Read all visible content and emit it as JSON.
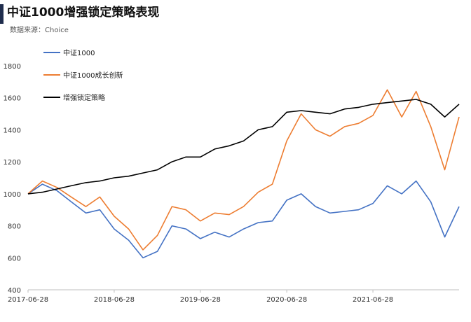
{
  "header": {
    "title": "中证1000增强锁定策略表现",
    "source": "数据来源：Choice"
  },
  "chart_data": {
    "type": "line",
    "title": "中证1000增强锁定策略表现",
    "xlabel": "",
    "ylabel": "",
    "ylim": [
      400,
      1800
    ],
    "yticks": [
      400,
      600,
      800,
      1000,
      1200,
      1400,
      1600,
      1800
    ],
    "xticks": [
      "2017-06-28",
      "2018-06-28",
      "2019-06-28",
      "2020-06-28",
      "2021-06-28"
    ],
    "grid": false,
    "legend_position": "top-left",
    "x": [
      "2017-06-28",
      "2017-08-28",
      "2017-10-28",
      "2017-12-28",
      "2018-02-28",
      "2018-04-28",
      "2018-06-28",
      "2018-08-28",
      "2018-10-28",
      "2018-12-28",
      "2019-02-28",
      "2019-04-28",
      "2019-06-28",
      "2019-08-28",
      "2019-10-28",
      "2019-12-28",
      "2020-02-28",
      "2020-04-28",
      "2020-06-28",
      "2020-08-28",
      "2020-10-28",
      "2020-12-28",
      "2021-02-28",
      "2021-04-28",
      "2021-06-28",
      "2021-08-28",
      "2021-10-28",
      "2021-12-28",
      "2022-02-28",
      "2022-04-28",
      "2022-06-28"
    ],
    "series": [
      {
        "name": "中证1000",
        "color": "#4472c4",
        "values": [
          1000,
          1060,
          1020,
          950,
          880,
          900,
          780,
          710,
          600,
          640,
          800,
          780,
          720,
          760,
          730,
          780,
          820,
          830,
          960,
          1000,
          920,
          880,
          890,
          900,
          940,
          1050,
          1000,
          1080,
          950,
          730,
          920
        ]
      },
      {
        "name": "中证1000成长创新",
        "color": "#ed7d31",
        "values": [
          1000,
          1080,
          1040,
          980,
          920,
          980,
          860,
          780,
          650,
          740,
          920,
          900,
          830,
          880,
          870,
          920,
          1010,
          1060,
          1330,
          1500,
          1400,
          1360,
          1420,
          1440,
          1490,
          1650,
          1480,
          1640,
          1420,
          1150,
          1480
        ]
      },
      {
        "name": "增强锁定策略",
        "color": "#000000",
        "values": [
          1000,
          1010,
          1030,
          1050,
          1070,
          1080,
          1100,
          1110,
          1130,
          1150,
          1200,
          1230,
          1230,
          1280,
          1300,
          1330,
          1400,
          1420,
          1510,
          1520,
          1510,
          1500,
          1530,
          1540,
          1560,
          1570,
          1580,
          1590,
          1560,
          1480,
          1560
        ]
      }
    ]
  }
}
